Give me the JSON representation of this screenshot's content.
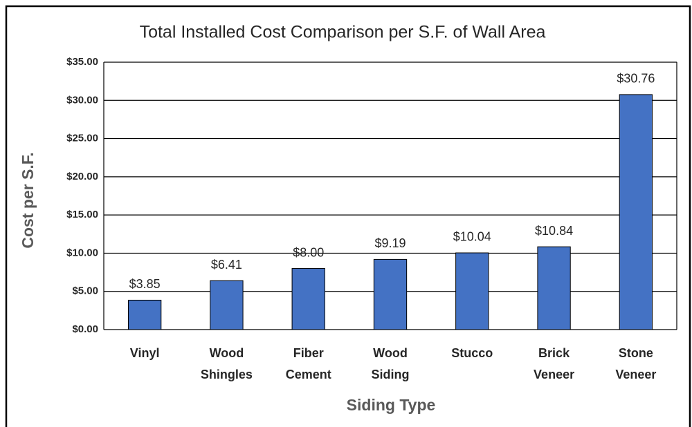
{
  "chart_data": {
    "type": "bar",
    "title": "Total Installed Cost Comparison per S.F. of Wall Area",
    "xlabel": "Siding Type",
    "ylabel": "Cost per S.F.",
    "categories": [
      "Vinyl",
      "Wood Shingles",
      "Fiber Cement",
      "Wood Siding",
      "Stucco",
      "Brick Veneer",
      "Stone Veneer"
    ],
    "values": [
      3.85,
      6.41,
      8.0,
      9.19,
      10.04,
      10.84,
      30.76
    ],
    "value_labels": [
      "$3.85",
      "$6.41",
      "$8.00",
      "$9.19",
      "$10.04",
      "$10.84",
      "$30.76"
    ],
    "color": "#4472c4",
    "ylim": [
      0,
      35
    ],
    "yticks": [
      {
        "value": 0,
        "label": "$0.00"
      },
      {
        "value": 5,
        "label": "$5.00"
      },
      {
        "value": 10,
        "label": "$10.00"
      },
      {
        "value": 15,
        "label": "$15.00"
      },
      {
        "value": 20,
        "label": "$20.00"
      },
      {
        "value": 25,
        "label": "$25.00"
      },
      {
        "value": 30,
        "label": "$30.00"
      },
      {
        "value": 35,
        "label": "$35.00"
      }
    ],
    "grid": true
  }
}
